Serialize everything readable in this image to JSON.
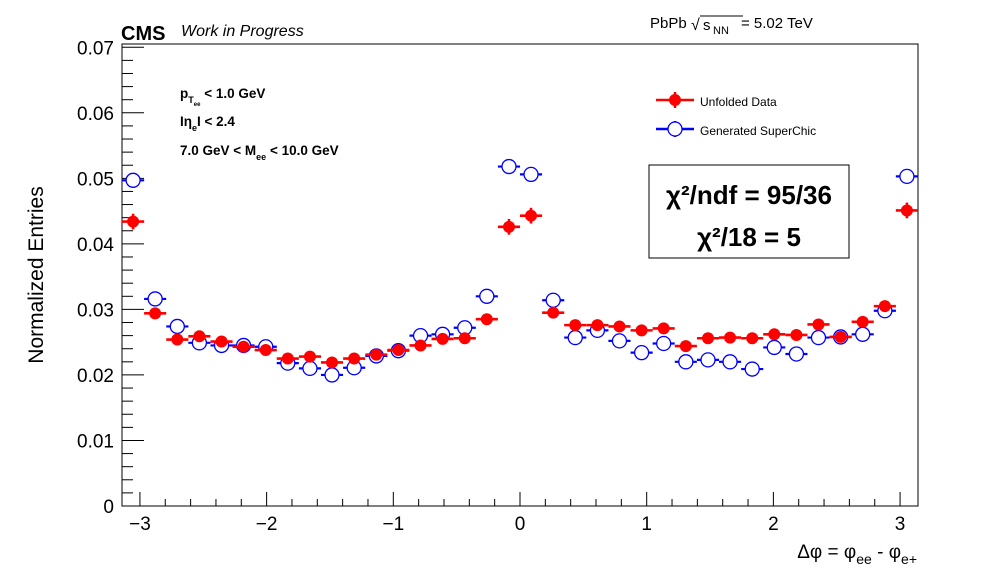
{
  "header": {
    "experiment": "CMS",
    "status": "Work in Progress",
    "collision": "PbPb",
    "sqrt": "√",
    "s_label": "s",
    "s_sub": "NN",
    "energy": " = 5.02 TeV"
  },
  "cuts": {
    "line1_a": "p",
    "line1_sub1": "T",
    "line1_sub2": "ee",
    "line1_b": " < 1.0 GeV",
    "line2_a": "Iη",
    "line2_sub": "e",
    "line2_b": "I < 2.4",
    "line3_a": "7.0 GeV < M",
    "line3_sub": "ee",
    "line3_b": " < 10.0 GeV"
  },
  "chi2": {
    "line1": "χ²/ndf = 95/36",
    "line2": "χ²/18 = 5"
  },
  "legend": {
    "data": "Unfolded Data",
    "mc": "Generated SuperChic"
  },
  "axes": {
    "ylabel": "Normalized Entries",
    "xlabel_a": "Δφ = φ",
    "xlabel_sub1": "ee",
    "xlabel_b": " - φ",
    "xlabel_sub2": "e+"
  },
  "colors": {
    "data": "#ff0000",
    "mc": "#0000ff"
  },
  "chart_data": {
    "type": "scatter",
    "xlim": [
      -3.1416,
      3.1416
    ],
    "ylim": [
      0,
      0.0705
    ],
    "xticks": [
      -3,
      -2,
      -1,
      0,
      1,
      2,
      3
    ],
    "xtick_labels": [
      "−3",
      "−2",
      "−1",
      "0",
      "1",
      "2",
      "3"
    ],
    "yticks": [
      0,
      0.01,
      0.02,
      0.03,
      0.04,
      0.05,
      0.06,
      0.07
    ],
    "ytick_labels": [
      "0",
      "0.01",
      "0.02",
      "0.03",
      "0.04",
      "0.05",
      "0.06",
      "0.07"
    ],
    "legend_position": "top-right",
    "series": [
      {
        "name": "Unfolded Data",
        "style": "filled-circle",
        "x": [
          -3.054,
          -2.88,
          -2.705,
          -2.531,
          -2.356,
          -2.182,
          -2.007,
          -1.833,
          -1.658,
          -1.484,
          -1.309,
          -1.134,
          -0.96,
          -0.785,
          -0.611,
          -0.436,
          -0.262,
          -0.087,
          0.087,
          0.262,
          0.436,
          0.611,
          0.785,
          0.96,
          1.134,
          1.309,
          1.484,
          1.658,
          1.833,
          2.007,
          2.182,
          2.356,
          2.531,
          2.705,
          2.88,
          3.054
        ],
        "y": [
          0.0434,
          0.0294,
          0.0254,
          0.0259,
          0.0251,
          0.0243,
          0.0238,
          0.0225,
          0.0228,
          0.0219,
          0.0225,
          0.0231,
          0.0238,
          0.0245,
          0.0255,
          0.0256,
          0.0285,
          0.0426,
          0.0443,
          0.0295,
          0.0276,
          0.0276,
          0.0274,
          0.0268,
          0.0271,
          0.0244,
          0.0256,
          0.0257,
          0.0256,
          0.0262,
          0.0261,
          0.0277,
          0.0258,
          0.0281,
          0.0305,
          0.0451
        ],
        "err": [
          0.0012,
          0.0008,
          0.0007,
          0.0007,
          0.0007,
          0.0007,
          0.0007,
          0.0007,
          0.0007,
          0.0007,
          0.0007,
          0.0007,
          0.0007,
          0.0007,
          0.0007,
          0.0007,
          0.0008,
          0.0012,
          0.0012,
          0.0008,
          0.0007,
          0.0007,
          0.0007,
          0.0007,
          0.0007,
          0.0007,
          0.0007,
          0.0007,
          0.0007,
          0.0007,
          0.0007,
          0.0007,
          0.0007,
          0.0007,
          0.0008,
          0.0012
        ]
      },
      {
        "name": "Generated SuperChic",
        "style": "open-circle",
        "x": [
          -3.054,
          -2.88,
          -2.705,
          -2.531,
          -2.356,
          -2.182,
          -2.007,
          -1.833,
          -1.658,
          -1.484,
          -1.309,
          -1.134,
          -0.96,
          -0.785,
          -0.611,
          -0.436,
          -0.262,
          -0.087,
          0.087,
          0.262,
          0.436,
          0.611,
          0.785,
          0.96,
          1.134,
          1.309,
          1.484,
          1.658,
          1.833,
          2.007,
          2.182,
          2.356,
          2.531,
          2.705,
          2.88,
          3.054
        ],
        "y": [
          0.0497,
          0.0316,
          0.0274,
          0.0249,
          0.0245,
          0.0245,
          0.0243,
          0.0218,
          0.021,
          0.02,
          0.0211,
          0.0229,
          0.0237,
          0.026,
          0.0262,
          0.0272,
          0.032,
          0.0518,
          0.0506,
          0.0314,
          0.0257,
          0.0268,
          0.0252,
          0.0234,
          0.0248,
          0.022,
          0.0223,
          0.022,
          0.0209,
          0.0242,
          0.0232,
          0.0257,
          0.0258,
          0.0262,
          0.0298,
          0.0503
        ],
        "err": [
          0.0004,
          0.0003,
          0.0003,
          0.0003,
          0.0003,
          0.0003,
          0.0003,
          0.0003,
          0.0003,
          0.0003,
          0.0003,
          0.0003,
          0.0003,
          0.0003,
          0.0003,
          0.0003,
          0.0003,
          0.0004,
          0.0004,
          0.0003,
          0.0003,
          0.0003,
          0.0003,
          0.0003,
          0.0003,
          0.0003,
          0.0003,
          0.0003,
          0.0003,
          0.0003,
          0.0003,
          0.0003,
          0.0003,
          0.0003,
          0.0003,
          0.0004
        ]
      }
    ]
  }
}
